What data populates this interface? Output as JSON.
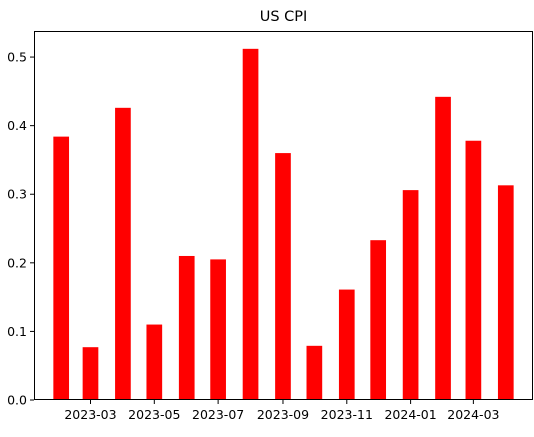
{
  "chart_data": {
    "type": "bar",
    "title": "US CPI",
    "xlabel": "",
    "ylabel": "",
    "x_type": "date",
    "dates": [
      "2023-02-01",
      "2023-03-01",
      "2023-04-01",
      "2023-05-01",
      "2023-06-01",
      "2023-07-01",
      "2023-08-01",
      "2023-09-01",
      "2023-10-01",
      "2023-11-01",
      "2023-12-01",
      "2024-01-01",
      "2024-02-01",
      "2024-03-01",
      "2024-04-01"
    ],
    "values": [
      0.384,
      0.077,
      0.426,
      0.11,
      0.21,
      0.205,
      0.512,
      0.36,
      0.079,
      0.161,
      0.233,
      0.306,
      0.442,
      0.378,
      0.313
    ],
    "xtick_labels": [
      "2023-03",
      "2023-05",
      "2023-07",
      "2023-09",
      "2023-11",
      "2024-01",
      "2024-03"
    ],
    "xtick_dates": [
      "2023-03-01",
      "2023-05-01",
      "2023-07-01",
      "2023-09-01",
      "2023-11-01",
      "2024-01-01",
      "2024-03-01"
    ],
    "ytick_values": [
      0.0,
      0.1,
      0.2,
      0.3,
      0.4,
      0.5
    ],
    "ytick_labels": [
      "0.0",
      "0.1",
      "0.2",
      "0.3",
      "0.4",
      "0.5"
    ],
    "xlim": [
      "2023-01-06",
      "2024-04-27"
    ],
    "ylim": [
      0,
      0.538
    ],
    "bar_color": "#ff0000",
    "grid": false,
    "legend": "none"
  }
}
